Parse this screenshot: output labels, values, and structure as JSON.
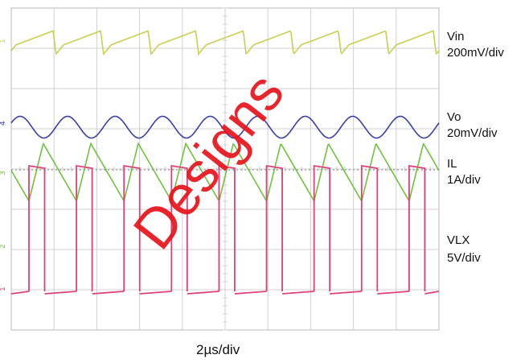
{
  "chart_data": {
    "type": "line",
    "title": "",
    "xlabel": "2µs/div",
    "x_divisions": 10,
    "y_divisions": 8,
    "grid": true,
    "switching_cycles": 9,
    "series": [
      {
        "name": "Vin",
        "label": "Vin",
        "scale": "200mV/div",
        "color": "#c9cf4f",
        "shape": "sawtooth",
        "amplitude_div": 0.7
      },
      {
        "name": "Vo",
        "label": "Vo",
        "scale": "20mV/div",
        "color": "#3b3fa6",
        "shape": "sine",
        "amplitude_div": 0.45
      },
      {
        "name": "IL",
        "label": "IL",
        "scale": "1A/div",
        "color": "#6fc23f",
        "shape": "triangle",
        "amplitude_div": 1.3
      },
      {
        "name": "VLX",
        "label": "VLX",
        "scale": "5V/div",
        "color": "#e0407a",
        "shape": "pulse",
        "amplitude_div": 2.6
      }
    ]
  },
  "watermark": "Designs",
  "channel_markers": [
    "1",
    "4",
    "3",
    "2",
    "1"
  ]
}
